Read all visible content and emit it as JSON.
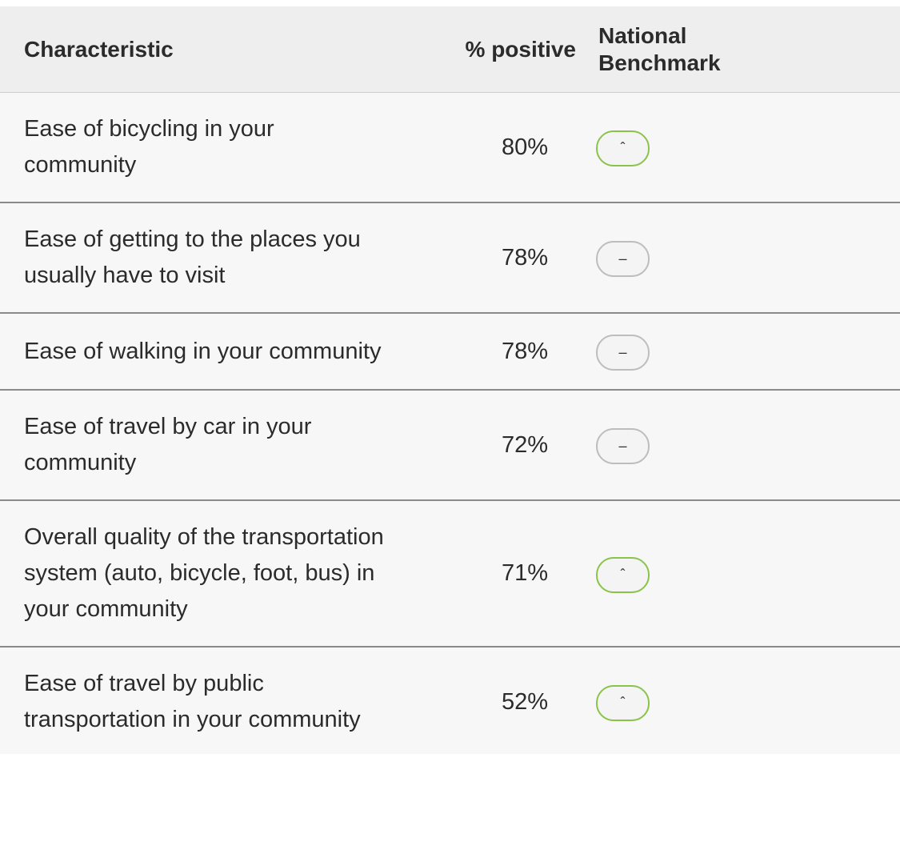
{
  "header": {
    "characteristic": "Characteristic",
    "percent": "% positive",
    "benchmark": "National Benchmark"
  },
  "rows": [
    {
      "characteristic": "Ease of bicycling in your community",
      "percent": "80%",
      "benchmark": {
        "symbol": "ˆ",
        "color": "#8bc34a"
      }
    },
    {
      "characteristic": "Ease of getting to the places you usually have to visit",
      "percent": "78%",
      "benchmark": {
        "symbol": "–",
        "color": "#bdbdbd"
      }
    },
    {
      "characteristic": "Ease of walking in your community",
      "percent": "78%",
      "benchmark": {
        "symbol": "–",
        "color": "#bdbdbd"
      }
    },
    {
      "characteristic": "Ease of travel by car in your community",
      "percent": "72%",
      "benchmark": {
        "symbol": "–",
        "color": "#bdbdbd"
      }
    },
    {
      "characteristic": "Overall quality of the transportation system (auto, bicycle, foot, bus) in your community",
      "percent": "71%",
      "benchmark": {
        "symbol": "ˆ",
        "color": "#8bc34a"
      }
    },
    {
      "characteristic": "Ease of travel by public transportation in your community",
      "percent": "52%",
      "benchmark": {
        "symbol": "ˆ",
        "color": "#8bc34a"
      }
    }
  ]
}
